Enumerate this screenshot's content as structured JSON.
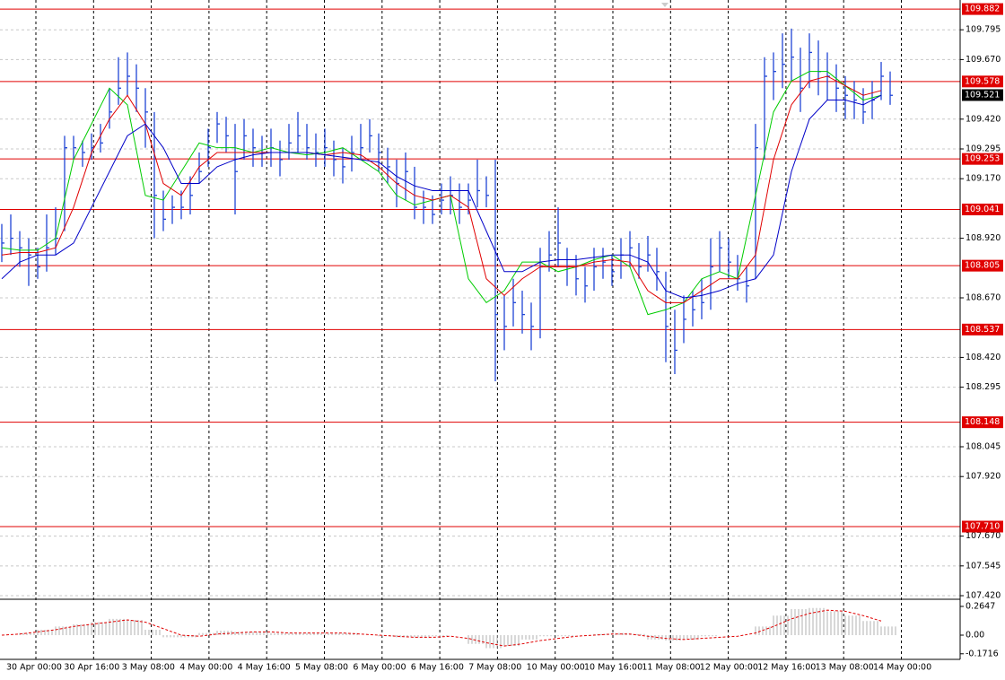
{
  "chart_data": [
    {
      "type": "ohlc",
      "categories": [
        "30 Apr 00:00",
        "30 Apr 16:00",
        "3 May 08:00",
        "4 May 00:00",
        "4 May 16:00",
        "5 May 08:00",
        "6 May 00:00",
        "6 May 16:00",
        "7 May 08:00",
        "10 May 00:00",
        "10 May 16:00",
        "11 May 08:00",
        "12 May 00:00",
        "12 May 16:00",
        "13 May 08:00",
        "14 May 00:00"
      ],
      "color": "#1f45d6",
      "high": [
        108.98,
        109.02,
        108.95,
        108.92,
        108.88,
        109.02,
        109.05,
        109.35,
        109.35,
        109.33,
        109.36,
        109.4,
        109.55,
        109.68,
        109.7,
        109.65,
        109.55,
        109.45,
        109.12,
        109.1,
        109.12,
        109.18,
        109.28,
        109.38,
        109.45,
        109.43,
        109.4,
        109.42,
        109.38,
        109.35,
        109.38,
        109.33,
        109.4,
        109.45,
        109.4,
        109.36,
        109.38,
        109.33,
        109.3,
        109.35,
        109.4,
        109.42,
        109.36,
        109.3,
        109.25,
        109.28,
        109.22,
        109.12,
        109.1,
        109.15,
        109.18,
        109.15,
        109.15,
        109.25,
        109.18,
        109.25,
        108.68,
        108.75,
        108.7,
        108.65,
        108.88,
        108.95,
        109.05,
        108.88,
        108.85,
        108.8,
        108.88,
        108.88,
        108.85,
        108.92,
        108.95,
        108.9,
        108.93,
        108.88,
        108.78,
        108.62,
        108.68,
        108.7,
        108.75,
        108.92,
        108.95,
        108.92,
        108.85,
        108.8,
        109.4,
        109.68,
        109.7,
        109.78,
        109.8,
        109.72,
        109.78,
        109.75,
        109.7,
        109.65,
        109.6,
        109.58,
        109.55,
        109.58,
        109.66,
        109.62
      ],
      "low": [
        108.82,
        108.85,
        108.8,
        108.72,
        108.75,
        108.78,
        108.85,
        108.95,
        109.25,
        109.22,
        109.25,
        109.28,
        109.38,
        109.48,
        109.52,
        109.45,
        109.3,
        108.92,
        108.95,
        108.98,
        109.0,
        109.02,
        109.15,
        109.22,
        109.32,
        109.28,
        109.02,
        109.25,
        109.22,
        109.22,
        109.22,
        109.18,
        109.25,
        109.28,
        109.25,
        109.22,
        109.22,
        109.18,
        109.15,
        109.2,
        109.25,
        109.28,
        109.2,
        109.15,
        109.05,
        109.08,
        109.0,
        108.98,
        108.98,
        109.02,
        109.02,
        108.98,
        109.02,
        109.05,
        109.05,
        108.32,
        108.45,
        108.55,
        108.52,
        108.45,
        108.5,
        108.78,
        108.8,
        108.72,
        108.68,
        108.65,
        108.7,
        108.75,
        108.72,
        108.75,
        108.8,
        108.75,
        108.78,
        108.7,
        108.4,
        108.35,
        108.48,
        108.55,
        108.58,
        108.62,
        108.78,
        108.75,
        108.7,
        108.65,
        108.75,
        109.25,
        109.5,
        109.55,
        109.58,
        109.45,
        109.55,
        109.52,
        109.5,
        109.45,
        109.42,
        109.42,
        109.4,
        109.42,
        109.5,
        109.48
      ],
      "close": [
        108.9,
        108.92,
        108.88,
        108.85,
        108.8,
        108.88,
        108.92,
        109.3,
        109.3,
        109.28,
        109.3,
        109.32,
        109.45,
        109.55,
        109.6,
        109.55,
        109.45,
        109.1,
        109.0,
        109.05,
        109.05,
        109.1,
        109.2,
        109.3,
        109.4,
        109.35,
        109.2,
        109.35,
        109.3,
        109.28,
        109.3,
        109.25,
        109.32,
        109.35,
        109.3,
        109.28,
        109.3,
        109.25,
        109.22,
        109.28,
        109.3,
        109.35,
        109.28,
        109.22,
        109.15,
        109.2,
        109.05,
        109.05,
        109.02,
        109.08,
        109.1,
        109.05,
        109.08,
        109.12,
        109.1,
        108.6,
        108.55,
        108.65,
        108.6,
        108.55,
        108.8,
        108.85,
        108.9,
        108.8,
        108.75,
        108.72,
        108.8,
        108.82,
        108.78,
        108.85,
        108.88,
        108.8,
        108.85,
        108.78,
        108.55,
        108.45,
        108.58,
        108.62,
        108.65,
        108.8,
        108.88,
        108.82,
        108.75,
        108.72,
        109.3,
        109.6,
        109.62,
        109.65,
        109.68,
        109.55,
        109.7,
        109.62,
        109.6,
        109.55,
        109.52,
        109.5,
        109.45,
        109.5,
        109.6,
        109.52
      ],
      "moving_averages": [
        {
          "color": "#00cc00",
          "values": [
            108.88,
            108.87,
            108.87,
            108.92,
            109.25,
            109.4,
            109.55,
            109.48,
            109.1,
            109.08,
            109.2,
            109.32,
            109.3,
            109.3,
            109.28,
            109.3,
            109.28,
            109.27,
            109.28,
            109.3,
            109.25,
            109.2,
            109.1,
            109.06,
            109.08,
            109.1,
            108.75,
            108.65,
            108.7,
            108.82,
            108.82,
            108.78,
            108.8,
            108.83,
            108.85,
            108.8,
            108.6,
            108.62,
            108.65,
            108.75,
            108.78,
            108.75,
            109.1,
            109.45,
            109.58,
            109.62,
            109.62,
            109.56,
            109.5,
            109.52
          ]
        },
        {
          "color": "#e00000",
          "values": [
            108.85,
            108.86,
            108.86,
            108.88,
            109.05,
            109.28,
            109.42,
            109.52,
            109.4,
            109.15,
            109.1,
            109.22,
            109.28,
            109.28,
            109.28,
            109.28,
            109.28,
            109.28,
            109.27,
            109.28,
            109.27,
            109.22,
            109.15,
            109.1,
            109.08,
            109.1,
            109.05,
            108.75,
            108.68,
            108.75,
            108.8,
            108.8,
            108.8,
            108.82,
            108.83,
            108.82,
            108.7,
            108.65,
            108.65,
            108.7,
            108.75,
            108.75,
            108.85,
            109.25,
            109.48,
            109.58,
            109.6,
            109.56,
            109.52,
            109.54
          ]
        },
        {
          "color": "#0000c8",
          "values": [
            108.75,
            108.82,
            108.85,
            108.85,
            108.9,
            109.05,
            109.2,
            109.35,
            109.4,
            109.3,
            109.15,
            109.15,
            109.22,
            109.25,
            109.27,
            109.28,
            109.28,
            109.28,
            109.27,
            109.26,
            109.25,
            109.24,
            109.18,
            109.14,
            109.12,
            109.12,
            109.12,
            108.95,
            108.78,
            108.78,
            108.82,
            108.83,
            108.83,
            108.84,
            108.85,
            108.85,
            108.82,
            108.7,
            108.67,
            108.68,
            108.7,
            108.73,
            108.75,
            108.85,
            109.2,
            109.42,
            109.5,
            109.5,
            109.48,
            109.52
          ]
        }
      ],
      "levels": {
        "color": "#e00000",
        "values": [
          109.882,
          109.578,
          109.253,
          109.041,
          108.805,
          108.537,
          108.148,
          107.71
        ],
        "value_labels": [
          "109.882",
          "109.578",
          "109.253",
          "109.041",
          "108.805",
          "108.537",
          "108.148",
          "107.710"
        ]
      },
      "last_price": 109.521,
      "ylim": [
        107.405,
        109.92
      ],
      "yticks": [
        {
          "value": 109.795,
          "label": "109.795"
        },
        {
          "value": 109.67,
          "label": "109.670"
        },
        {
          "value": 109.42,
          "label": "109.420"
        },
        {
          "value": 109.295,
          "label": "109.295"
        },
        {
          "value": 109.17,
          "label": "109.170"
        },
        {
          "value": 108.92,
          "label": "108.920"
        },
        {
          "value": 108.67,
          "label": "108.670"
        },
        {
          "value": 108.42,
          "label": "108.420"
        },
        {
          "value": 108.295,
          "label": "108.295"
        },
        {
          "value": 108.045,
          "label": "108.045"
        },
        {
          "value": 107.92,
          "label": "107.920"
        },
        {
          "value": 107.67,
          "label": "107.670"
        },
        {
          "value": 107.545,
          "label": "107.545"
        },
        {
          "value": 107.42,
          "label": "107.420"
        }
      ],
      "grid": true
    },
    {
      "type": "macd",
      "histogram": {
        "color": "#b0b0b0",
        "values": [
          0.0,
          0.02,
          0.05,
          0.08,
          0.1,
          0.12,
          0.15,
          0.14,
          0.05,
          -0.02,
          -0.02,
          0.02,
          0.04,
          0.03,
          0.03,
          0.02,
          0.02,
          0.02,
          0.02,
          0.02,
          0.0,
          -0.01,
          -0.02,
          -0.02,
          -0.01,
          0.0,
          -0.08,
          -0.12,
          -0.1,
          -0.04,
          -0.01,
          -0.01,
          0.0,
          0.01,
          0.02,
          0.01,
          -0.04,
          -0.05,
          -0.04,
          -0.01,
          0.0,
          0.0,
          0.08,
          0.18,
          0.24,
          0.25,
          0.22,
          0.18,
          0.13,
          0.08
        ]
      },
      "signal": {
        "color": "#e00000",
        "values": [
          0.0,
          0.01,
          0.03,
          0.05,
          0.08,
          0.1,
          0.12,
          0.14,
          0.12,
          0.06,
          0.0,
          -0.01,
          0.01,
          0.02,
          0.03,
          0.03,
          0.02,
          0.02,
          0.02,
          0.02,
          0.01,
          0.0,
          -0.01,
          -0.02,
          -0.02,
          -0.01,
          -0.03,
          -0.07,
          -0.1,
          -0.08,
          -0.05,
          -0.03,
          -0.01,
          0.0,
          0.01,
          0.01,
          -0.01,
          -0.03,
          -0.04,
          -0.03,
          -0.02,
          -0.01,
          0.02,
          0.08,
          0.15,
          0.2,
          0.23,
          0.22,
          0.18,
          0.13
        ]
      },
      "ylim": [
        -0.223,
        0.314
      ],
      "yticks": [
        0.2647,
        {
          "value": 0,
          "label": "0.00"
        },
        -0.1716
      ]
    }
  ]
}
